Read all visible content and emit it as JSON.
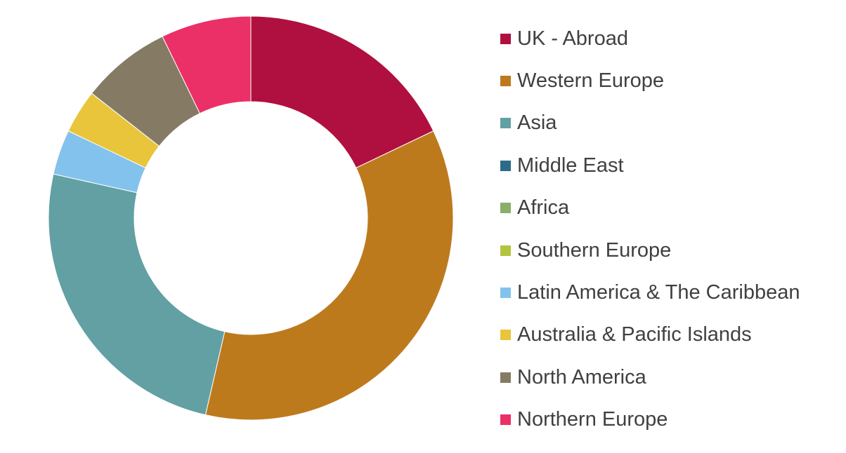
{
  "chart_data": {
    "type": "pie",
    "donut": true,
    "legend_position": "right",
    "categories": [
      "UK - Abroad",
      "Western Europe",
      "Asia",
      "Middle East",
      "Africa",
      "Southern Europe",
      "Latin America & The Caribbean",
      "Australia & Pacific Islands",
      "North America",
      "Northern Europe"
    ],
    "values": [
      17.9,
      35.7,
      24.9,
      0,
      0,
      0,
      3.6,
      3.5,
      7.2,
      7.2
    ],
    "unit": "percent",
    "colors": [
      "#B0103F",
      "#BD7A1D",
      "#62A0A4",
      "#2C6B8A",
      "#8BAE6A",
      "#B4C43E",
      "#84C2EE",
      "#E8C53A",
      "#857B65",
      "#EB3067"
    ]
  }
}
